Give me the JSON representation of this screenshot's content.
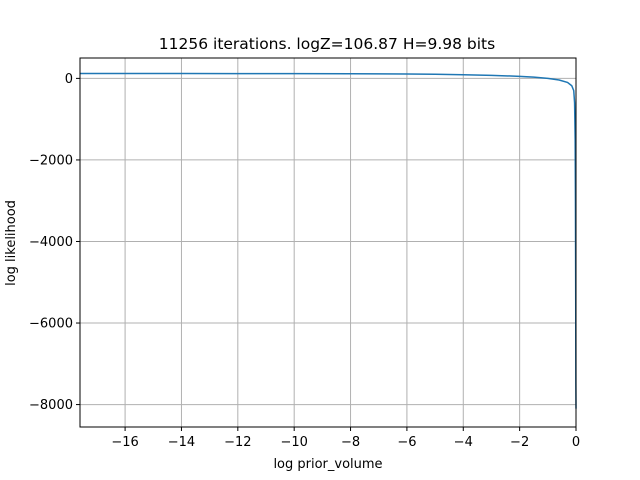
{
  "chart_data": {
    "type": "line",
    "title": "11256 iterations. logZ=106.87 H=9.98 bits",
    "xlabel": "log prior_volume",
    "ylabel": "log likelihood",
    "xlim": [
      -17.6,
      0
    ],
    "ylim": [
      -8550,
      500
    ],
    "grid": true,
    "x_ticks": [
      {
        "value": -16,
        "label": "−16"
      },
      {
        "value": -14,
        "label": "−14"
      },
      {
        "value": -12,
        "label": "−12"
      },
      {
        "value": -10,
        "label": "−10"
      },
      {
        "value": -8,
        "label": "−8"
      },
      {
        "value": -6,
        "label": "−6"
      },
      {
        "value": -4,
        "label": "−4"
      },
      {
        "value": -2,
        "label": "−2"
      },
      {
        "value": 0,
        "label": "0"
      }
    ],
    "y_ticks": [
      {
        "value": 0,
        "label": "0"
      },
      {
        "value": -2000,
        "label": "−2000"
      },
      {
        "value": -4000,
        "label": "−4000"
      },
      {
        "value": -6000,
        "label": "−6000"
      },
      {
        "value": -8000,
        "label": "−8000"
      }
    ],
    "series": [
      {
        "color": "#1f77b4",
        "x": [
          -17.6,
          -16,
          -14,
          -12,
          -10,
          -8,
          -6,
          -5,
          -4,
          -3,
          -2,
          -1.5,
          -1,
          -0.6,
          -0.3,
          -0.15,
          -0.08,
          -0.05,
          -0.03,
          -0.02,
          -0.01,
          -0.005,
          0
        ],
        "y": [
          120,
          120,
          119,
          118,
          116,
          113,
          106,
          100,
          90,
          75,
          50,
          30,
          0,
          -40,
          -100,
          -180,
          -300,
          -600,
          -1500,
          -3000,
          -5500,
          -7500,
          -8100
        ]
      }
    ]
  }
}
